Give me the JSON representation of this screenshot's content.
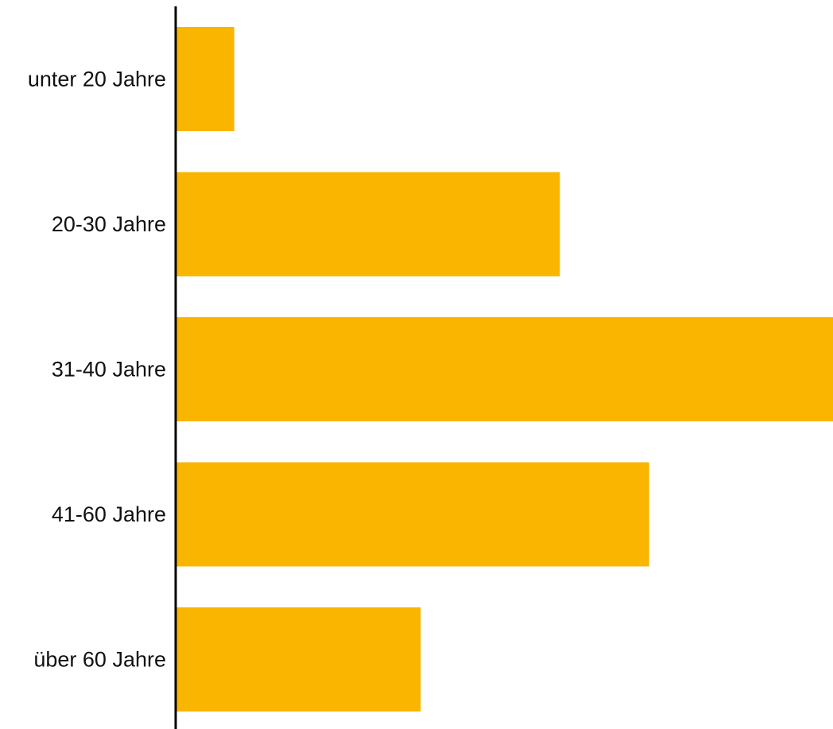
{
  "chart_data": {
    "type": "bar",
    "orientation": "horizontal",
    "categories": [
      "unter 20 Jahre",
      "20-30 Jahre",
      "31-40 Jahre",
      "41-60 Jahre",
      "über 60 Jahre"
    ],
    "values": [
      2.2,
      14.6,
      25,
      18,
      9.3
    ],
    "xlim": [
      0,
      25
    ],
    "title": "",
    "xlabel": "",
    "ylabel": "",
    "grid": false,
    "legend": "none",
    "colors": {
      "bar": "#F9B500",
      "axis": "#000000"
    }
  }
}
